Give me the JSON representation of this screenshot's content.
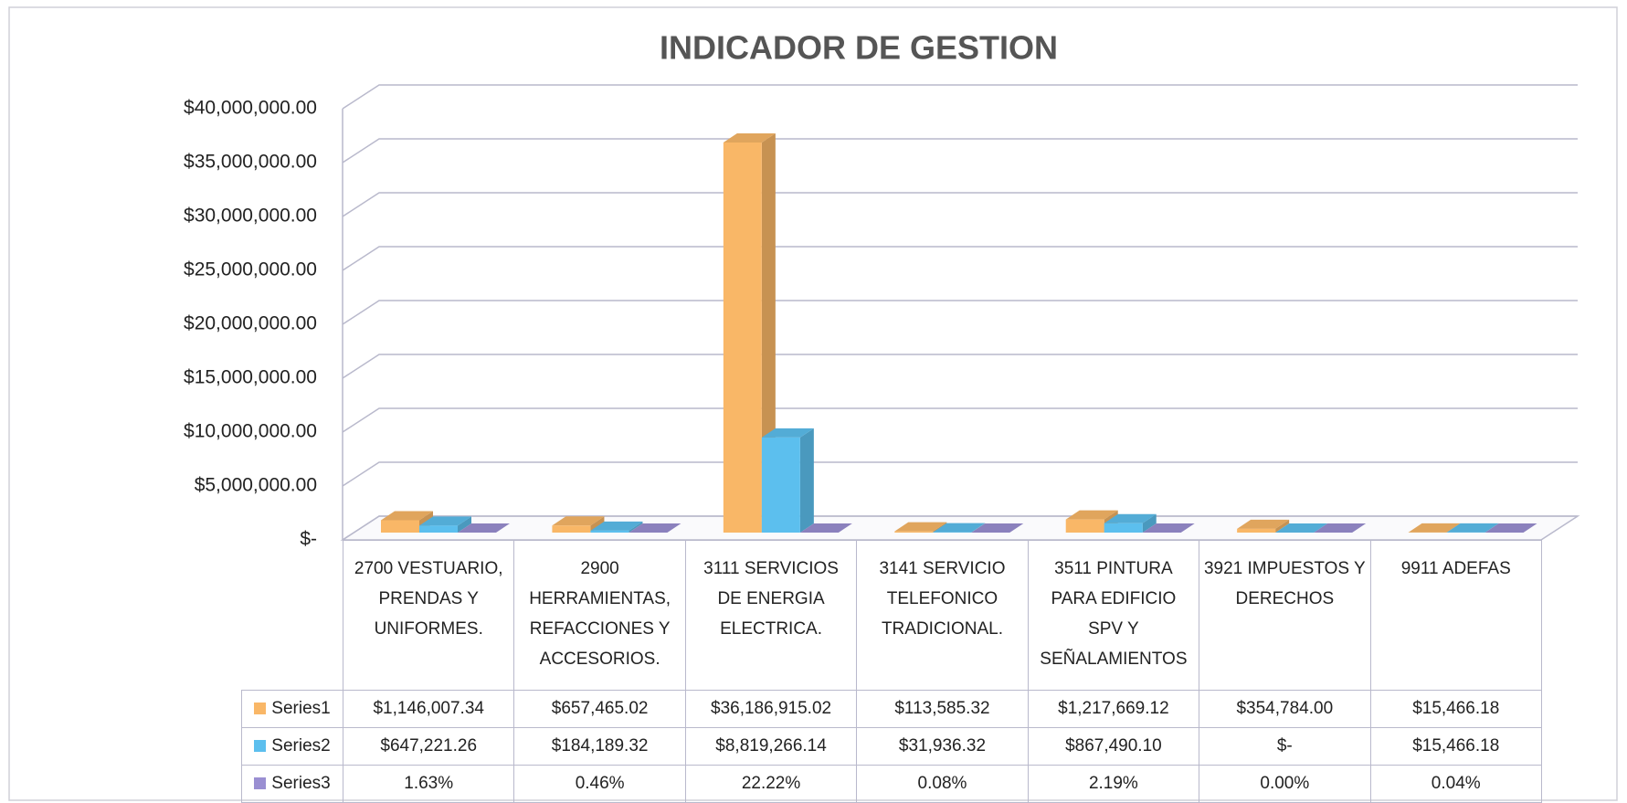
{
  "chart_data": {
    "type": "bar3d",
    "title": "INDICADOR DE GESTION",
    "categories": [
      "2700 VESTUARIO, PRENDAS Y UNIFORMES.",
      "2900 HERRAMIENTAS, REFACCIONES Y ACCESORIOS.",
      "3111 SERVICIOS DE ENERGIA ELECTRICA.",
      "3141 SERVICIO TELEFONICO TRADICIONAL.",
      "3511 PINTURA PARA EDIFICIO SPV Y SEÑALAMIENTOS",
      "3921 IMPUESTOS Y DERECHOS",
      "9911 ADEFAS"
    ],
    "series": [
      {
        "name": "Series1",
        "color": "#f9b767",
        "values": [
          1146007.34,
          657465.02,
          36186915.02,
          113585.32,
          1217669.12,
          354784.0,
          15466.18
        ],
        "value_labels": [
          "$1,146,007.34",
          "$657,465.02",
          "$36,186,915.02",
          "$113,585.32",
          "$1,217,669.12",
          "$354,784.00",
          "$15,466.18"
        ]
      },
      {
        "name": "Series2",
        "color": "#5cbfee",
        "values": [
          647221.26,
          184189.32,
          8819266.14,
          31936.32,
          867490.1,
          0,
          15466.18
        ],
        "value_labels": [
          "$647,221.26",
          "$184,189.32",
          "$8,819,266.14",
          "$31,936.32",
          "$867,490.10",
          "$-",
          "$15,466.18"
        ]
      },
      {
        "name": "Series3",
        "color": "#9a8fd2",
        "values": [
          1.63,
          0.46,
          22.22,
          0.08,
          2.19,
          0.0,
          0.04
        ],
        "value_labels": [
          "1.63%",
          "0.46%",
          "22.22%",
          "0.08%",
          "2.19%",
          "0.00%",
          "0.04%"
        ]
      }
    ],
    "ylim": [
      0,
      40000000
    ],
    "yticks": [
      {
        "value": 0,
        "label": "$-"
      },
      {
        "value": 5000000,
        "label": "$5,000,000.00"
      },
      {
        "value": 10000000,
        "label": "$10,000,000.00"
      },
      {
        "value": 15000000,
        "label": "$15,000,000.00"
      },
      {
        "value": 20000000,
        "label": "$20,000,000.00"
      },
      {
        "value": 25000000,
        "label": "$25,000,000.00"
      },
      {
        "value": 30000000,
        "label": "$30,000,000.00"
      },
      {
        "value": 35000000,
        "label": "$35,000,000.00"
      },
      {
        "value": 40000000,
        "label": "$40,000,000.00"
      }
    ],
    "grid": true
  }
}
